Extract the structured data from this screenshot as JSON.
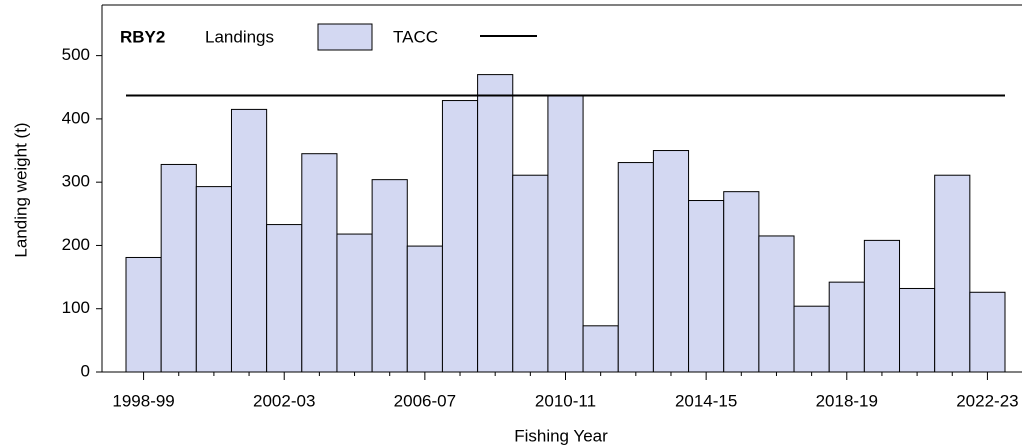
{
  "chart_data": {
    "type": "bar",
    "annotation": "RBY2",
    "x_label": "Fishing Year",
    "y_label": "Landing weight (t)",
    "categories": [
      "1998-99",
      null,
      null,
      null,
      "2002-03",
      null,
      null,
      null,
      "2006-07",
      null,
      null,
      null,
      "2010-11",
      null,
      null,
      null,
      "2014-15",
      null,
      null,
      null,
      "2018-19",
      null,
      null,
      null,
      "2022-23"
    ],
    "series": [
      {
        "name": "Landings",
        "color": "#d3d8f2",
        "values": [
          181,
          328,
          293,
          415,
          233,
          345,
          218,
          304,
          199,
          429,
          470,
          311,
          437,
          73,
          331,
          350,
          271,
          285,
          215,
          104,
          142,
          208,
          132,
          311,
          126
        ]
      }
    ],
    "reference_line": {
      "name": "TACC",
      "value": 437,
      "color": "#000000"
    },
    "ylim": [
      0,
      580
    ],
    "yticks": [
      0,
      100,
      200,
      300,
      400,
      500
    ]
  }
}
